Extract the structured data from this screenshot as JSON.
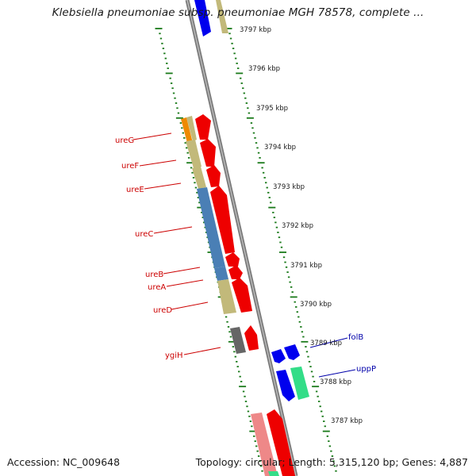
{
  "title": "Klebsiella pneumoniae subsp. pneumoniae MGH 78578, complete ...",
  "footer": {
    "accession": "Accession: NC_009648",
    "summary": "Topology: circular; Length: 5,315,120 bp; Genes: 4,887"
  },
  "ruler_labels": [
    "3797 kbp",
    "3796 kbp",
    "3795 kbp",
    "3794 kbp",
    "3793 kbp",
    "3792 kbp",
    "3791 kbp",
    "3790 kbp",
    "3789 kbp",
    "3788 kbp",
    "3787 kbp"
  ],
  "gene_labels": [
    {
      "name": "ureG",
      "color": "#cc0000"
    },
    {
      "name": "ureF",
      "color": "#cc0000"
    },
    {
      "name": "ureE",
      "color": "#cc0000"
    },
    {
      "name": "ureC",
      "color": "#cc0000"
    },
    {
      "name": "ureB",
      "color": "#cc0000"
    },
    {
      "name": "ureA",
      "color": "#cc0000"
    },
    {
      "name": "ureD",
      "color": "#cc0000"
    },
    {
      "name": "ygiH",
      "color": "#cc0000"
    },
    {
      "name": "folB",
      "color": "#0000aa"
    },
    {
      "name": "uppP",
      "color": "#0000aa"
    }
  ],
  "colors": {
    "tick": "#1a7a1a",
    "backbone": "#8c8c8c",
    "forward_cds": "#ee0000",
    "reverse_cds": "#0000ee",
    "khaki": "#c2b97a",
    "steelblue": "#4a7fb5",
    "orange": "#ee8a00",
    "grey": "#666666",
    "pink": "#ee8888",
    "green": "#33dd88"
  }
}
